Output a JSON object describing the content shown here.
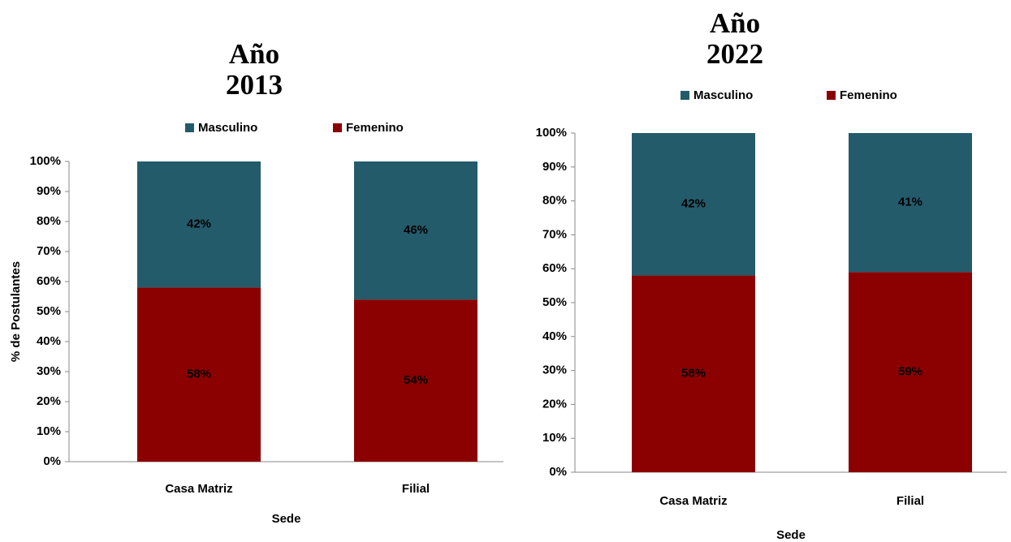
{
  "chart_data": [
    {
      "type": "stacked_bar",
      "title": "Año 2013",
      "x_label": "Sede",
      "y_label": "% de Postulantes",
      "categories": [
        "Casa Matriz",
        "Filial"
      ],
      "series": [
        {
          "name": "Masculino",
          "color": "#235b6b",
          "values": [
            42,
            46
          ],
          "value_labels": [
            "42%",
            "46%"
          ]
        },
        {
          "name": "Femenino",
          "color": "#8b0000",
          "values": [
            58,
            54
          ],
          "value_labels": [
            "58%",
            "54%"
          ]
        }
      ],
      "ylim": [
        0,
        100
      ],
      "yticks": [
        {
          "value": 0,
          "label": "0%"
        },
        {
          "value": 10,
          "label": "10%"
        },
        {
          "value": 20,
          "label": "20%"
        },
        {
          "value": 30,
          "label": "30%"
        },
        {
          "value": 40,
          "label": "40%"
        },
        {
          "value": 50,
          "label": "50%"
        },
        {
          "value": 60,
          "label": "60%"
        },
        {
          "value": 70,
          "label": "70%"
        },
        {
          "value": 80,
          "label": "80%"
        },
        {
          "value": 90,
          "label": "90%"
        },
        {
          "value": 100,
          "label": "100%"
        }
      ],
      "legend": "top",
      "grid": false
    },
    {
      "type": "stacked_bar",
      "title": "Año 2022",
      "x_label": "Sede",
      "categories": [
        "Casa Matriz",
        "Filial"
      ],
      "series": [
        {
          "name": "Masculino",
          "color": "#235b6b",
          "values": [
            42,
            41
          ],
          "value_labels": [
            "42%",
            "41%"
          ]
        },
        {
          "name": "Femenino",
          "color": "#8b0000",
          "values": [
            58,
            59
          ],
          "value_labels": [
            "58%",
            "59%"
          ]
        }
      ],
      "ylim": [
        0,
        100
      ],
      "yticks": [
        {
          "value": 0,
          "label": "0%"
        },
        {
          "value": 10,
          "label": "10%"
        },
        {
          "value": 20,
          "label": "20%"
        },
        {
          "value": 30,
          "label": "30%"
        },
        {
          "value": 40,
          "label": "40%"
        },
        {
          "value": 50,
          "label": "50%"
        },
        {
          "value": 60,
          "label": "60%"
        },
        {
          "value": 70,
          "label": "70%"
        },
        {
          "value": 80,
          "label": "80%"
        },
        {
          "value": 90,
          "label": "90%"
        },
        {
          "value": 100,
          "label": "100%"
        }
      ],
      "legend": "top",
      "grid": false
    }
  ]
}
